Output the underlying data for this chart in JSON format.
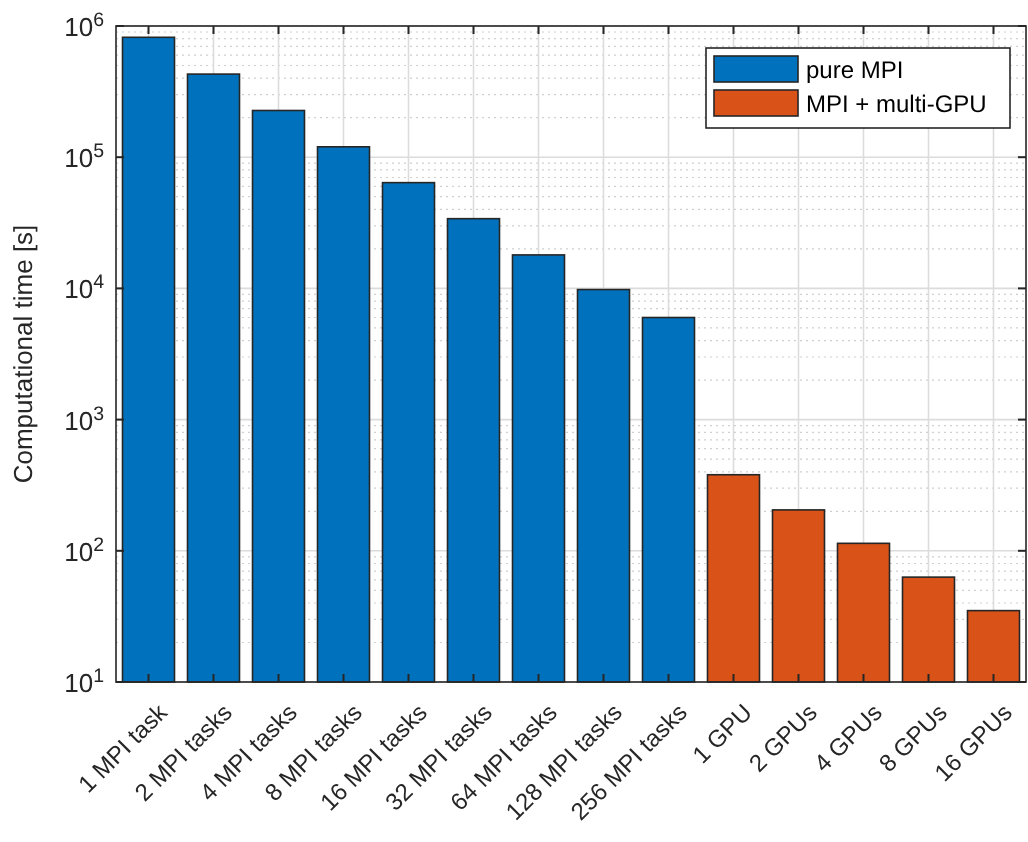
{
  "chart_data": {
    "type": "bar",
    "ylabel": "Computational time [s]",
    "categories": [
      "1 MPI task",
      "2 MPI tasks",
      "4 MPI tasks",
      "8 MPI tasks",
      "16 MPI tasks",
      "32 MPI tasks",
      "64 MPI tasks",
      "128 MPI tasks",
      "256 MPI tasks",
      "1 GPU",
      "2 GPUs",
      "4 GPUs",
      "8 GPUs",
      "16 GPUs"
    ],
    "series": [
      {
        "name": "pure MPI",
        "color": "#0072bd",
        "values": [
          820000,
          430000,
          227000,
          120000,
          64000,
          34000,
          18000,
          9800,
          6000,
          null,
          null,
          null,
          null,
          null
        ]
      },
      {
        "name": "MPI + multi-GPU",
        "color": "#d95319",
        "values": [
          null,
          null,
          null,
          null,
          null,
          null,
          null,
          null,
          null,
          380,
          205,
          114,
          63,
          35
        ]
      }
    ],
    "log": true,
    "ylim": [
      10,
      1000000
    ],
    "yticks": [
      {
        "value": 10,
        "label": "10$^{1}$"
      },
      {
        "value": 100,
        "label": "10$^{2}$"
      },
      {
        "value": 1000,
        "label": "10$^{3}$"
      },
      {
        "value": 10000,
        "label": "10$^{4}$"
      },
      {
        "value": 100000,
        "label": "10$^{5}$"
      },
      {
        "value": 1000000,
        "label": "10$^{6}$"
      }
    ],
    "grid": true,
    "legend": "top right"
  }
}
